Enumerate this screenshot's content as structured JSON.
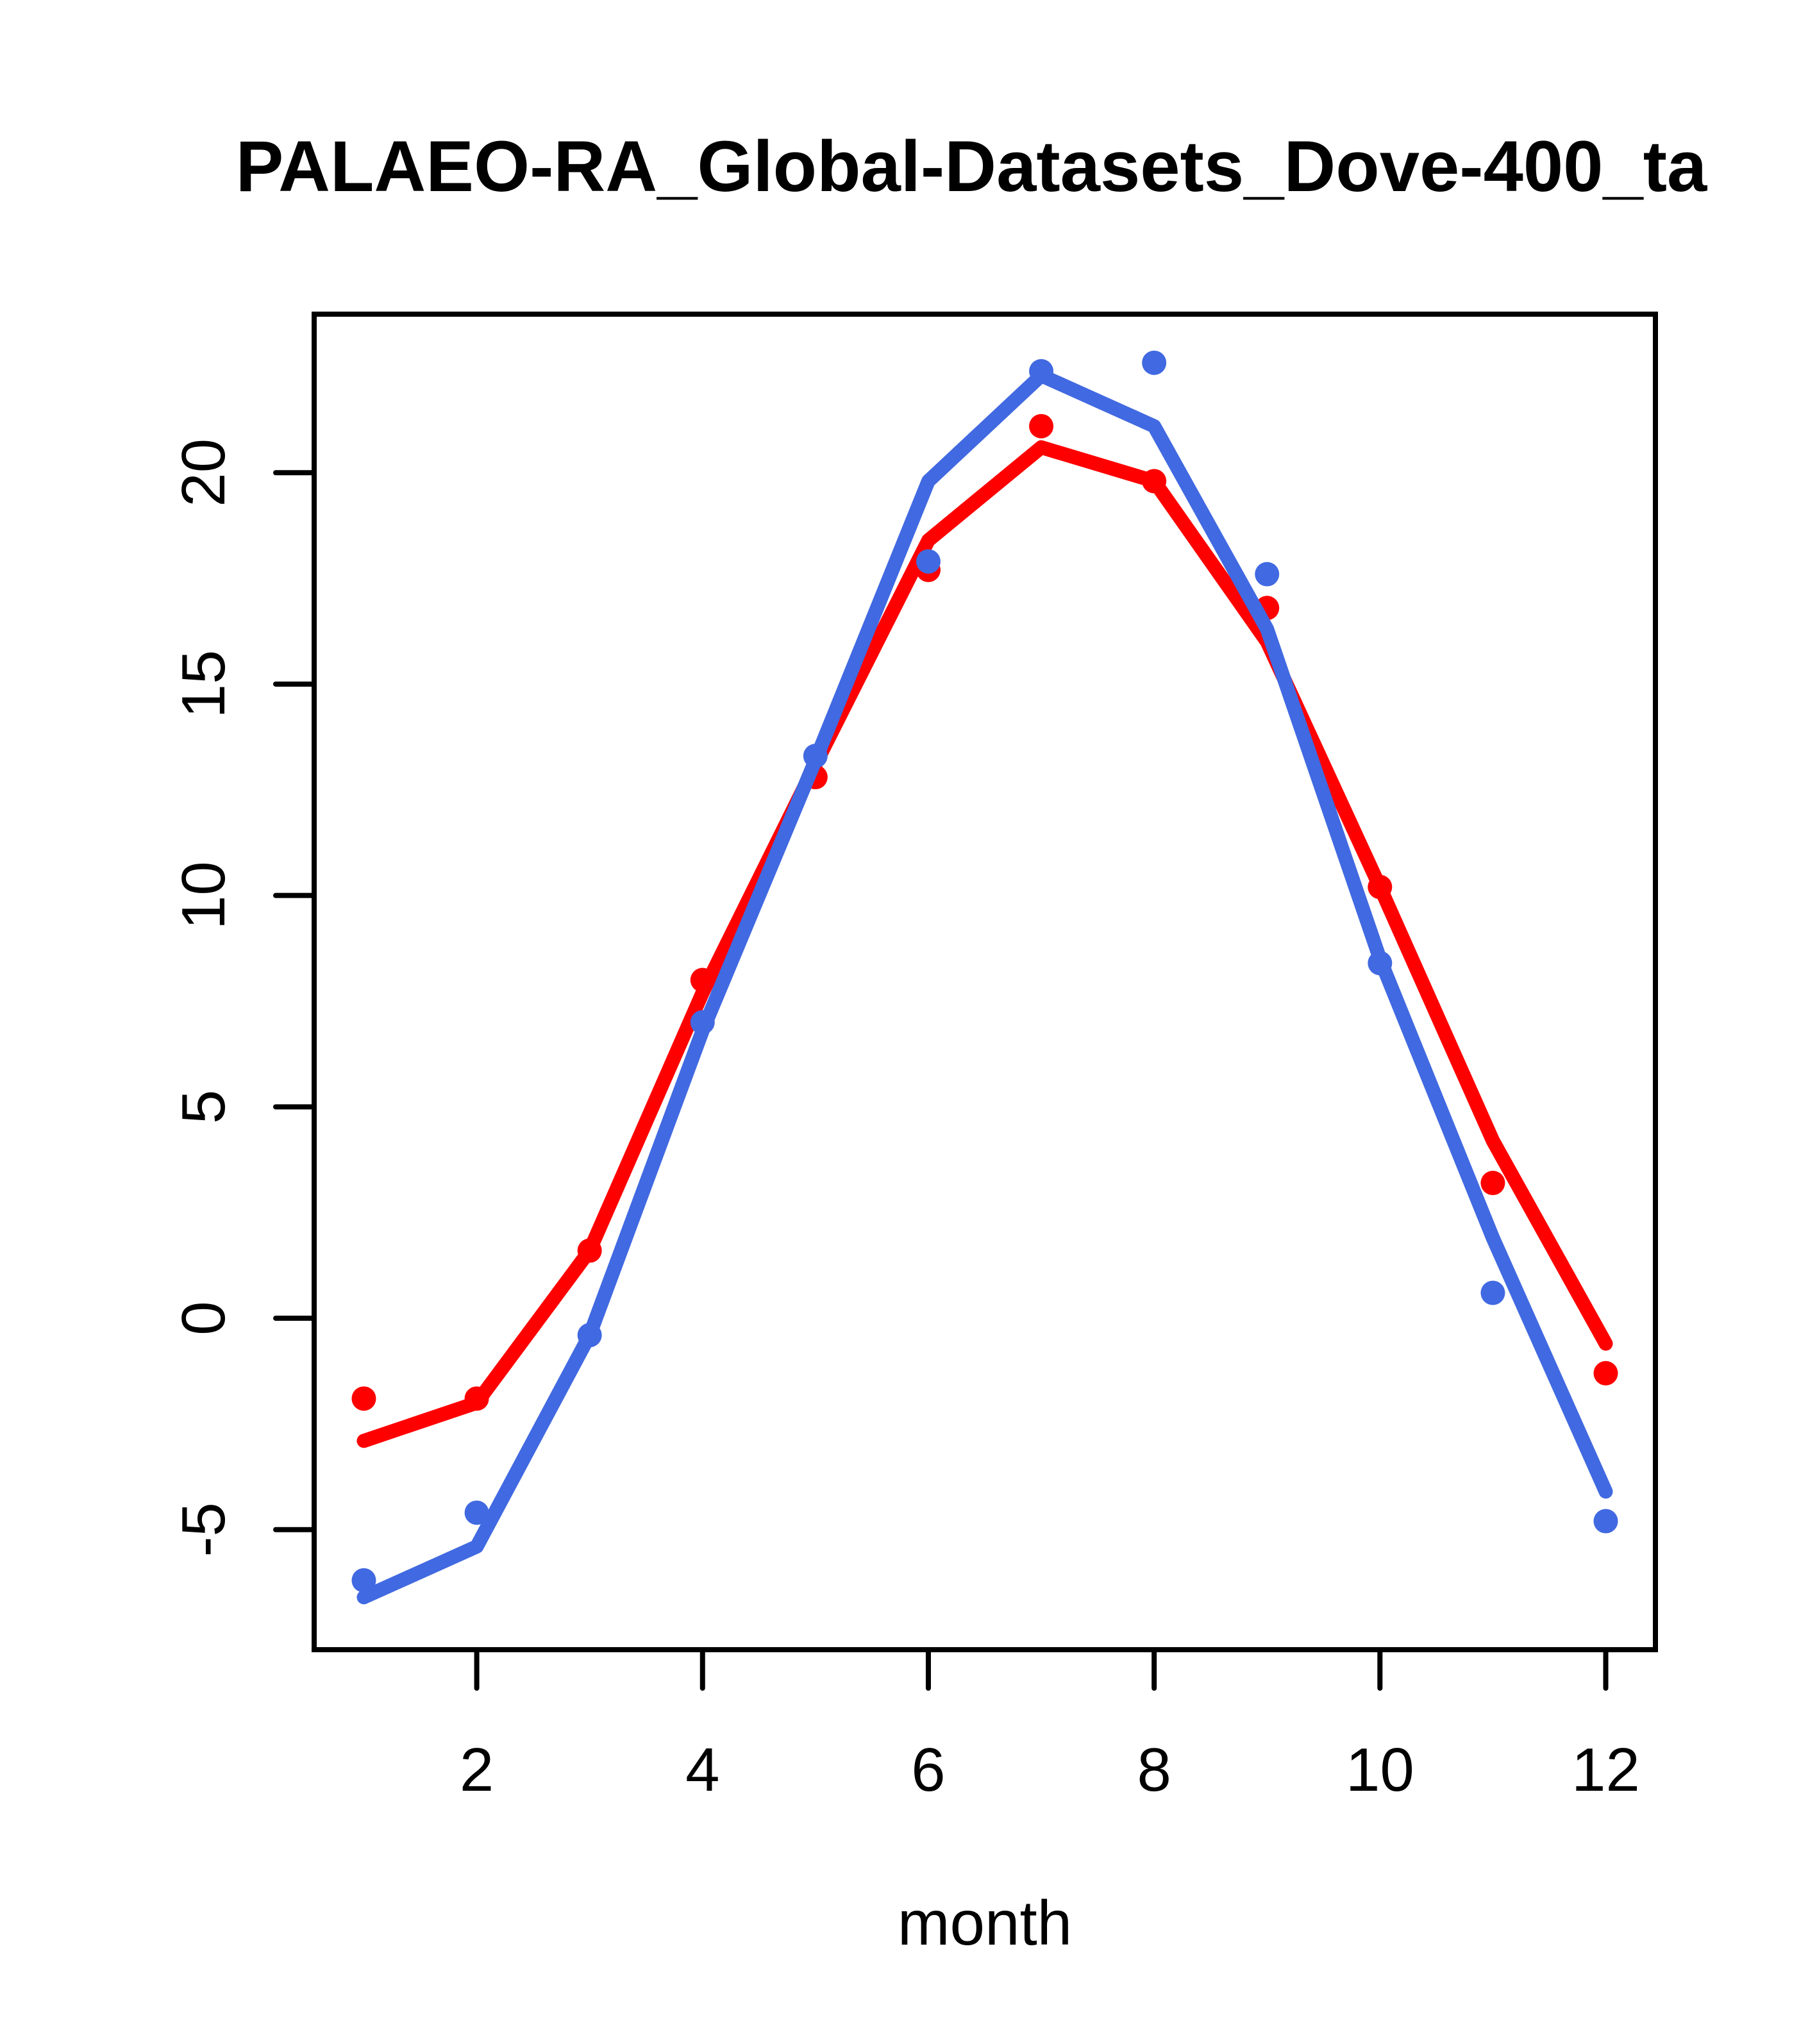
{
  "figure": {
    "title": "PALAEO-RA_Global-Datasets_Dove-400_ta"
  },
  "chart_data": {
    "type": "line",
    "title": "PALAEO-RA_Global-Datasets_Dove-400_ta",
    "xlabel": "month",
    "ylabel": "",
    "x": [
      1,
      2,
      3,
      4,
      5,
      6,
      7,
      8,
      9,
      10,
      11,
      12
    ],
    "series": [
      {
        "name": "red-line",
        "style": "line",
        "color": "#ff0000",
        "values": [
          -2.9,
          -2.0,
          1.6,
          7.7,
          13.1,
          18.4,
          20.6,
          19.8,
          16.0,
          10.2,
          4.2,
          -0.6
        ]
      },
      {
        "name": "red-points",
        "style": "points",
        "color": "#ff0000",
        "values": [
          -1.9,
          -1.9,
          1.6,
          8.0,
          12.8,
          17.7,
          21.1,
          19.8,
          16.8,
          10.2,
          3.2,
          -1.3
        ]
      },
      {
        "name": "blue-line",
        "style": "line",
        "color": "#4169e1",
        "values": [
          -6.6,
          -5.4,
          -0.4,
          6.8,
          13.2,
          19.8,
          22.3,
          21.1,
          16.3,
          8.5,
          1.9,
          -4.1
        ]
      },
      {
        "name": "blue-points",
        "style": "points",
        "color": "#4169e1",
        "values": [
          -6.2,
          -4.6,
          -0.4,
          7.0,
          13.3,
          17.9,
          22.4,
          22.6,
          17.6,
          8.4,
          0.6,
          -4.8
        ]
      }
    ],
    "xticks": [
      2,
      4,
      6,
      8,
      10,
      12
    ],
    "yticks": [
      -5,
      0,
      5,
      10,
      15,
      20
    ],
    "xlim": [
      0.56,
      12.44
    ],
    "ylim": [
      -7.84,
      23.75
    ],
    "grid": false,
    "legend": "none",
    "axis_color": "#000000",
    "background_color": "#ffffff"
  }
}
